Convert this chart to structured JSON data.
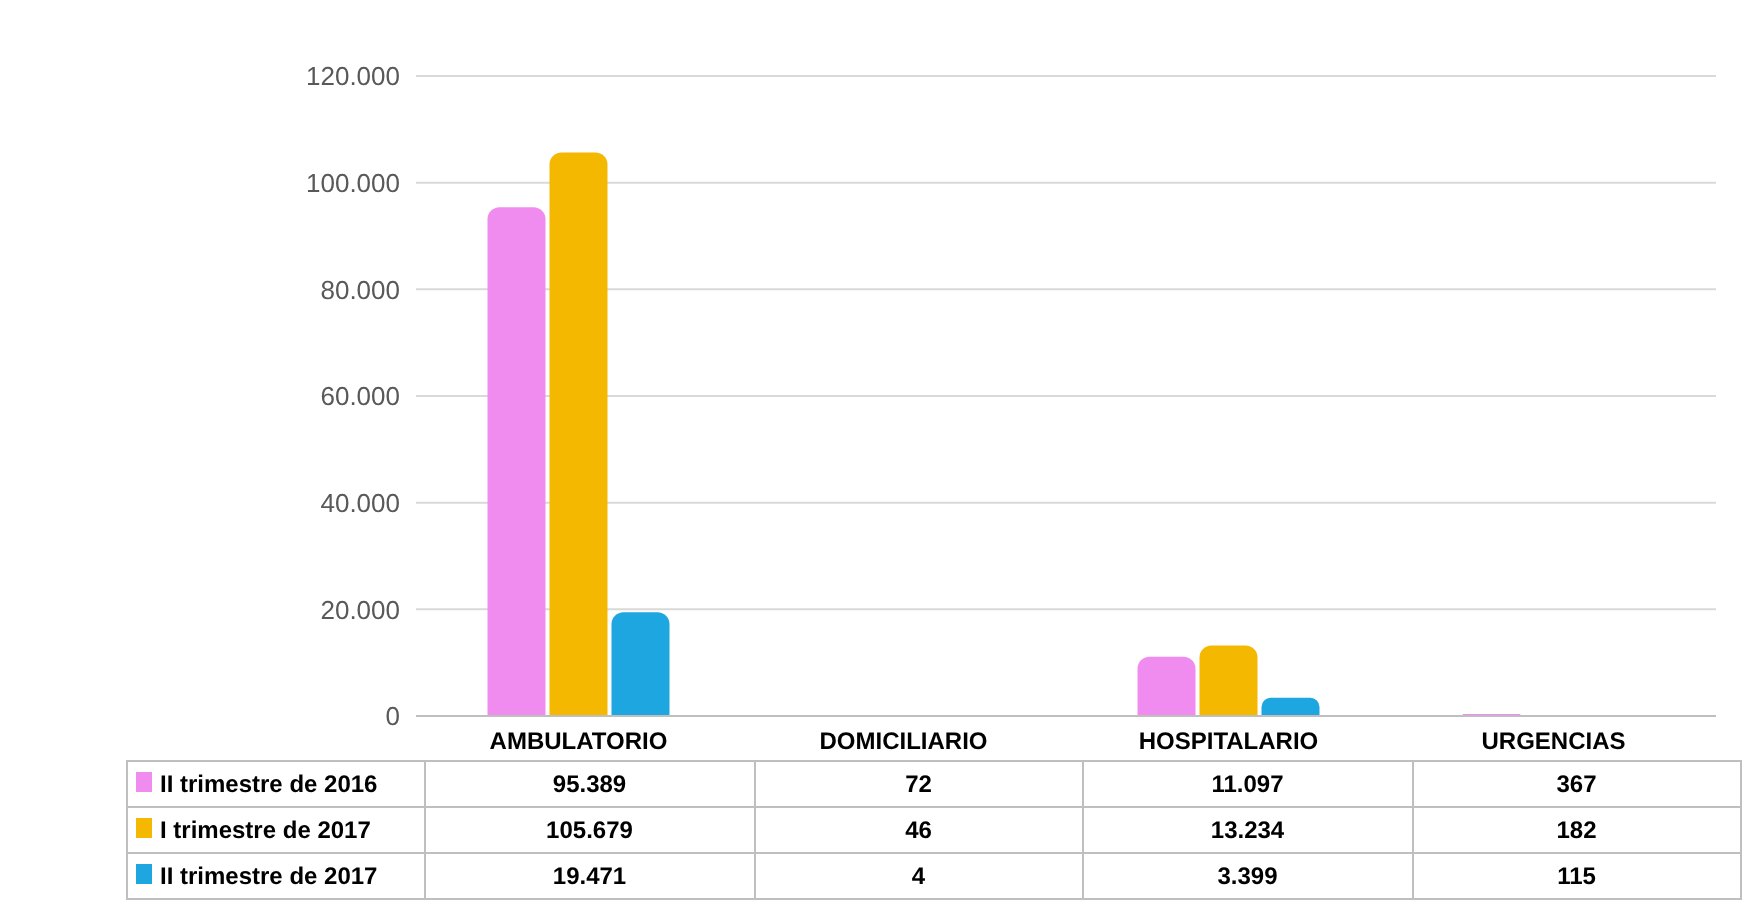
{
  "chart_data": {
    "type": "bar",
    "categories": [
      "AMBULATORIO",
      "DOMICILIARIO",
      "HOSPITALARIO",
      "URGENCIAS"
    ],
    "series": [
      {
        "name": "II trimestre de 2016",
        "color": "#f08cf0",
        "values": [
          95389,
          72,
          11097,
          367
        ],
        "value_labels": [
          "95.389",
          "72",
          "11.097",
          "367"
        ]
      },
      {
        "name": "I trimestre de 2017",
        "color": "#f5b800",
        "values": [
          105679,
          46,
          13234,
          182
        ],
        "value_labels": [
          "105.679",
          "46",
          "13.234",
          "182"
        ]
      },
      {
        "name": "II trimestre de 2017",
        "color": "#1ea6e0",
        "values": [
          19471,
          4,
          3399,
          115
        ],
        "value_labels": [
          "19.471",
          "4",
          "3.399",
          "115"
        ]
      }
    ],
    "ylim": [
      0,
      120000
    ],
    "yticks": [
      {
        "value": 0,
        "label": "0"
      },
      {
        "value": 20000,
        "label": "20.000"
      },
      {
        "value": 40000,
        "label": "40.000"
      },
      {
        "value": 60000,
        "label": "60.000"
      },
      {
        "value": 80000,
        "label": "80.000"
      },
      {
        "value": 100000,
        "label": "100.000"
      },
      {
        "value": 120000,
        "label": "120.000"
      }
    ],
    "grid": "y",
    "legend": "bottom"
  }
}
